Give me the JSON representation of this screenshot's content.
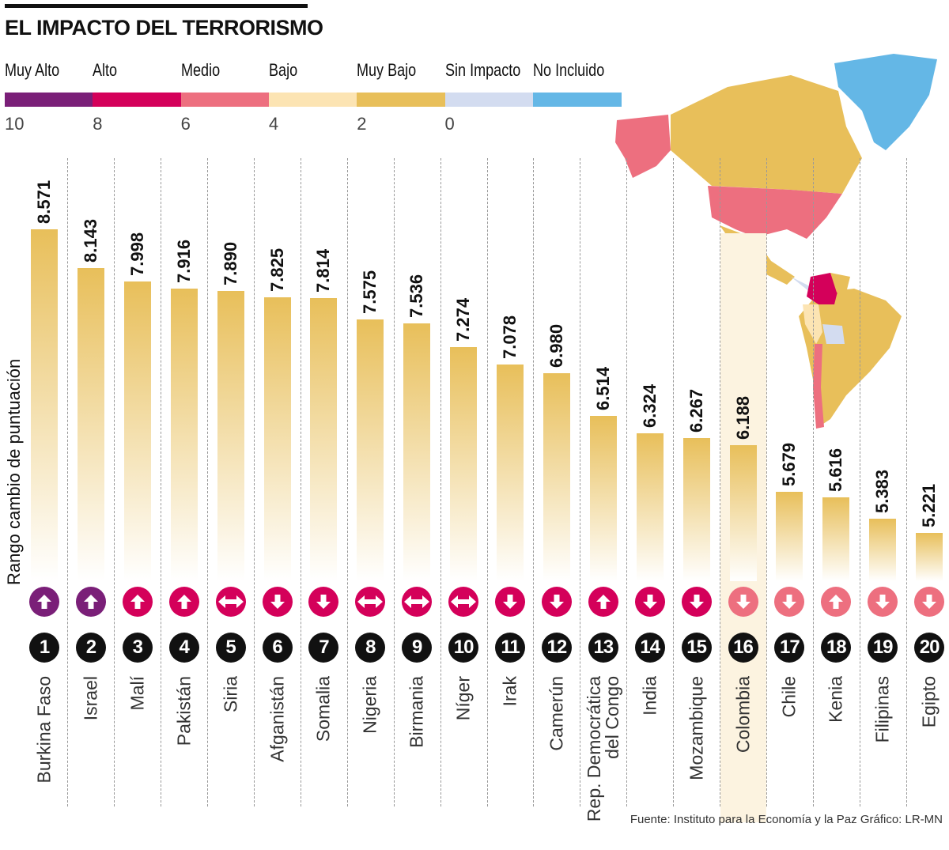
{
  "title": "EL IMPACTO DEL TERRORISMO",
  "legend": [
    {
      "label": "Muy Alto",
      "color": "#7a1f78",
      "value": "10"
    },
    {
      "label": "Alto",
      "color": "#d4005a",
      "value": "8"
    },
    {
      "label": "Medio",
      "color": "#ed6f7f",
      "value": "6"
    },
    {
      "label": "Bajo",
      "color": "#fce4b3",
      "value": "4"
    },
    {
      "label": "Muy Bajo",
      "color": "#e8bf5a",
      "value": "2"
    },
    {
      "label": "Sin Impacto",
      "color": "#d3dcf0",
      "value": "0"
    },
    {
      "label": "No Incluido",
      "color": "#64b7e6",
      "value": ""
    }
  ],
  "source": "Fuente: Instituto para la Economía y la Paz  Gráfico: LR-MN",
  "chart_data": {
    "type": "bar",
    "title": "EL IMPACTO DEL TERRORISMO",
    "ylabel": "Rango cambio de puntuación",
    "xlabel": "",
    "highlight": "Colombia",
    "categories": [
      "Burkina Faso",
      "Israel",
      "Malí",
      "Pakistán",
      "Siria",
      "Afganistán",
      "Somalia",
      "Nigeria",
      "Birmania",
      "Níger",
      "Irak",
      "Camerún",
      "Rep. Democrática del Congo",
      "India",
      "Mozambique",
      "Colombia",
      "Chile",
      "Kenia",
      "Filipinas",
      "Egipto"
    ],
    "values": [
      8.571,
      8.143,
      7.998,
      7.916,
      7.89,
      7.825,
      7.814,
      7.575,
      7.536,
      7.274,
      7.078,
      6.98,
      6.514,
      6.324,
      6.267,
      6.188,
      5.679,
      5.616,
      5.383,
      5.221
    ],
    "value_labels": [
      "8.571",
      "8.143",
      "7.998",
      "7.916",
      "7.890",
      "7.825",
      "7.814",
      "7.575",
      "7.536",
      "7.274",
      "7.078",
      "6.980",
      "6.514",
      "6.324",
      "6.267",
      "6.188",
      "5.679",
      "5.616",
      "5.383",
      "5.221"
    ],
    "ranks": [
      "1",
      "2",
      "3",
      "4",
      "5",
      "6",
      "7",
      "8",
      "9",
      "10",
      "11",
      "12",
      "13",
      "14",
      "15",
      "16",
      "17",
      "18",
      "19",
      "20"
    ],
    "trend": [
      "up",
      "up",
      "up",
      "up",
      "both",
      "down",
      "down",
      "both",
      "both",
      "both",
      "down",
      "down",
      "up",
      "down",
      "down",
      "down",
      "down",
      "up",
      "down",
      "down"
    ],
    "impact_level": [
      "Muy Alto",
      "Muy Alto",
      "Alto",
      "Alto",
      "Alto",
      "Alto",
      "Alto",
      "Alto",
      "Alto",
      "Alto",
      "Alto",
      "Alto",
      "Alto",
      "Alto",
      "Alto",
      "Medio",
      "Medio",
      "Medio",
      "Medio",
      "Medio"
    ],
    "bar_color": "#e8bf5a"
  }
}
